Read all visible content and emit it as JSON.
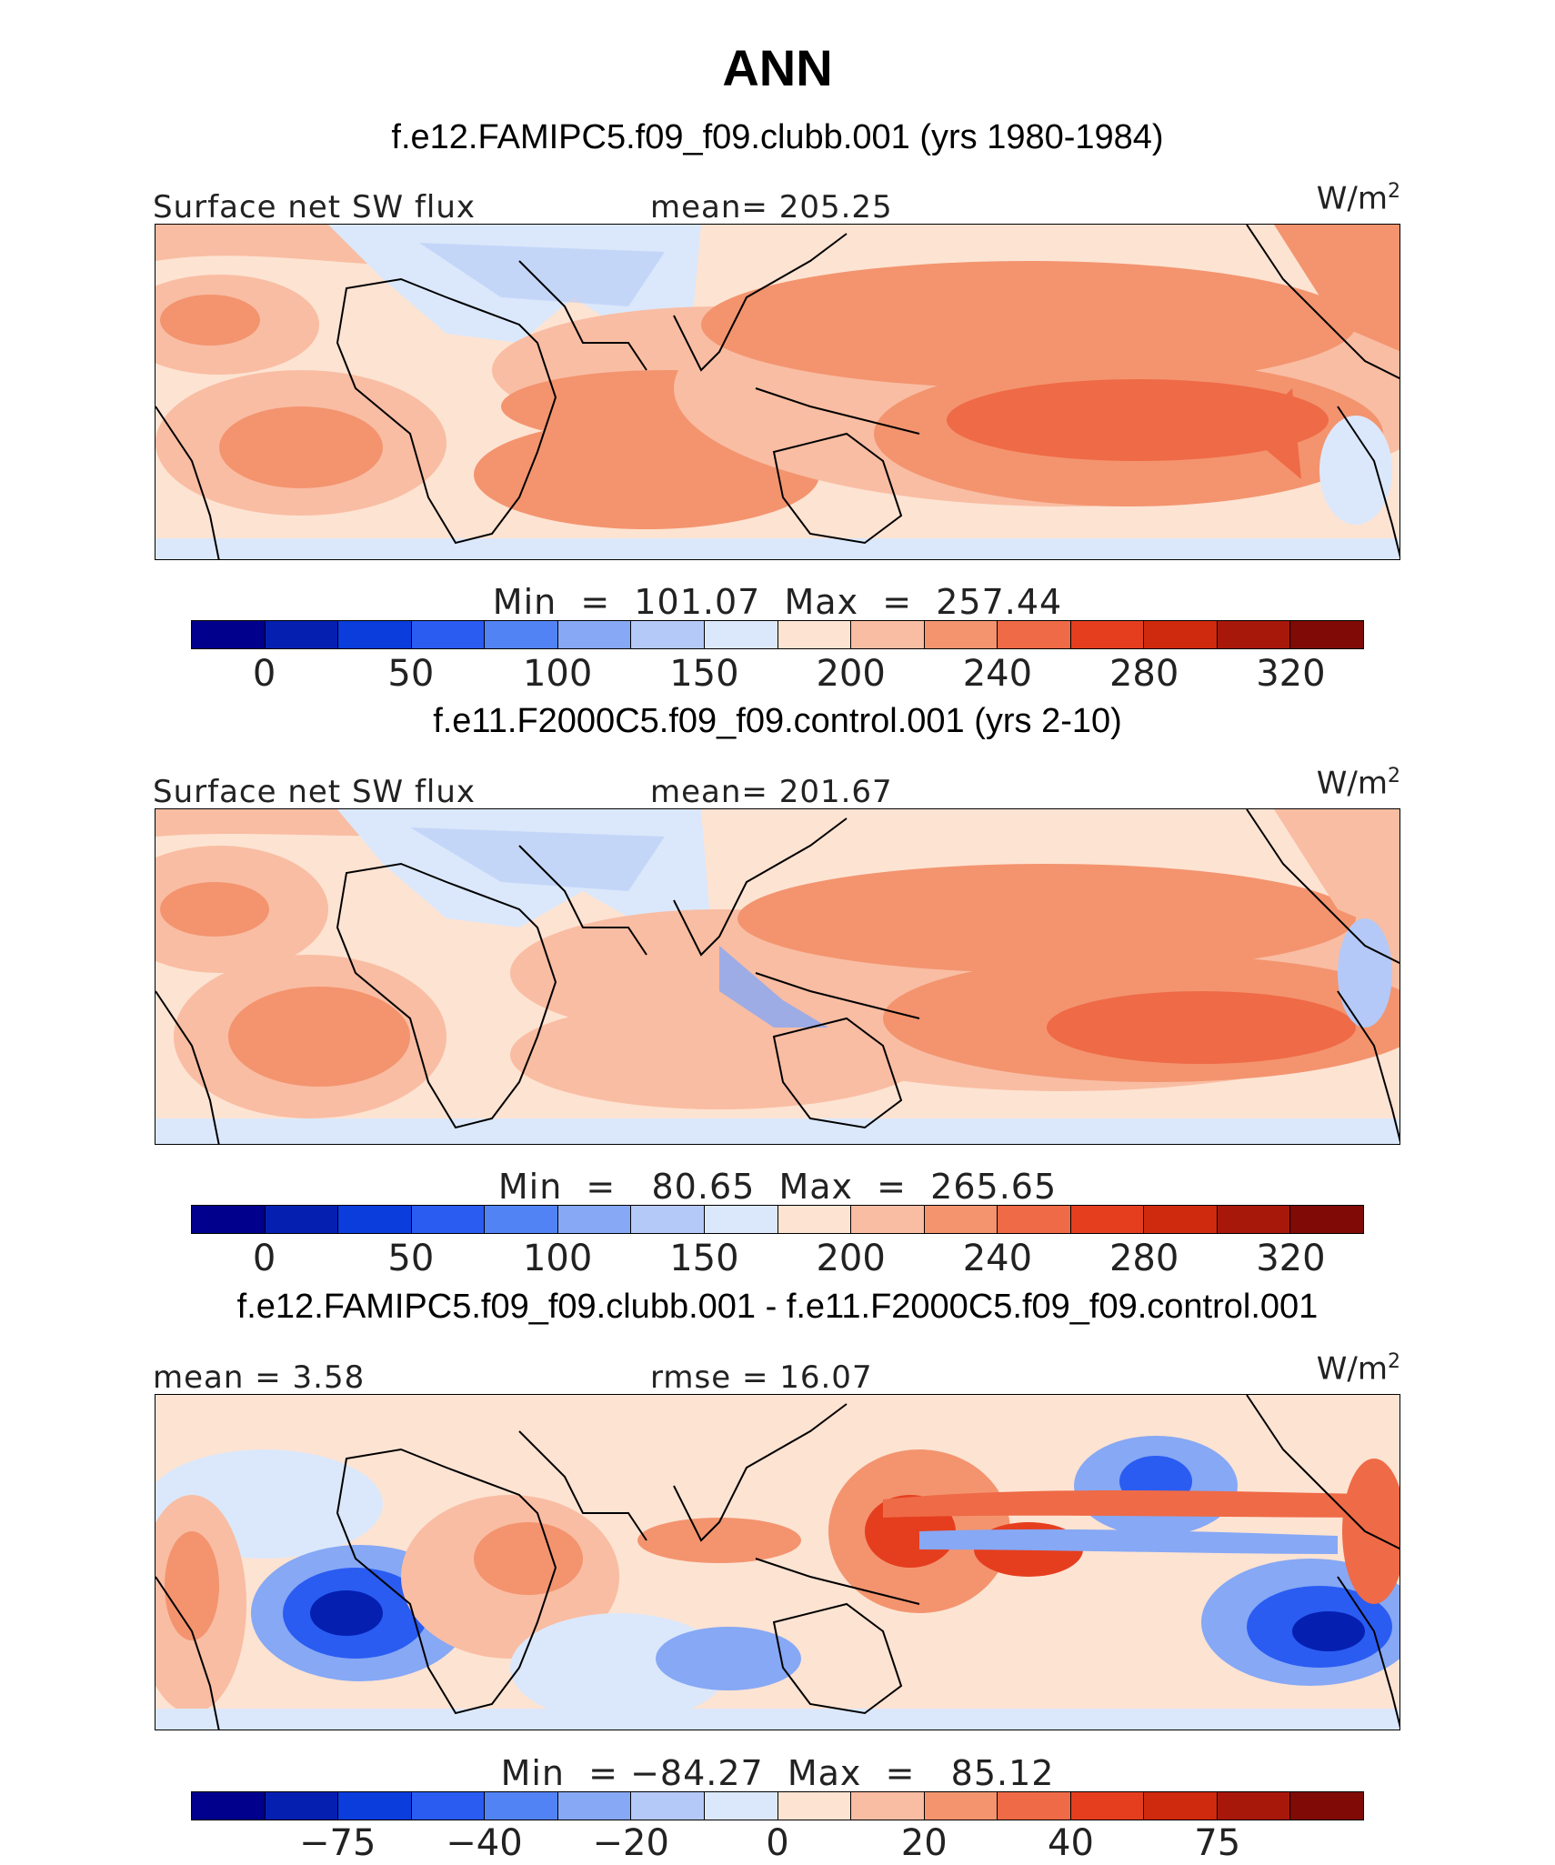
{
  "title": "ANN",
  "panels": [
    {
      "case_title": "f.e12.FAMIPC5.f09_f09.clubb.001 (yrs 1980-1984)",
      "left_label": "Surface net SW flux",
      "center_label": "mean= 205.25",
      "units": "W/m",
      "units_sup": "2",
      "minmax": "Min  =  101.07  Max  =  257.44",
      "colorbar_ticks": [
        "0",
        "50",
        "100",
        "150",
        "200",
        "240",
        "280",
        "320"
      ],
      "variant": "model"
    },
    {
      "case_title": "f.e11.F2000C5.f09_f09.control.001 (yrs 2-10)",
      "left_label": "Surface net SW flux",
      "center_label": "mean= 201.67",
      "units": "W/m",
      "units_sup": "2",
      "minmax": "Min  =   80.65  Max  =  265.65",
      "colorbar_ticks": [
        "0",
        "50",
        "100",
        "150",
        "200",
        "240",
        "280",
        "320"
      ],
      "variant": "control"
    },
    {
      "case_title": "f.e12.FAMIPC5.f09_f09.clubb.001 - f.e11.F2000C5.f09_f09.control.001",
      "left_label": "mean =    3.58",
      "center_label": "rmse  =   16.07",
      "units": "W/m",
      "units_sup": "2",
      "minmax": "Min  = −84.27  Max  =   85.12",
      "colorbar_ticks": [
        "−75",
        "−40",
        "−20",
        "0",
        "20",
        "40",
        "75"
      ],
      "variant": "diff"
    }
  ],
  "colorbar_colors": [
    "#00008c",
    "#0520b0",
    "#0a3ddb",
    "#2a5cf2",
    "#5283f5",
    "#86a8f5",
    "#b4c9f7",
    "#dbe8fb",
    "#fde3d2",
    "#f9bda3",
    "#f3946f",
    "#ef6a46",
    "#e53e1f",
    "#cf2a0d",
    "#a7180b",
    "#7f0a06"
  ],
  "ref_ticks_value_map_note": ""
}
